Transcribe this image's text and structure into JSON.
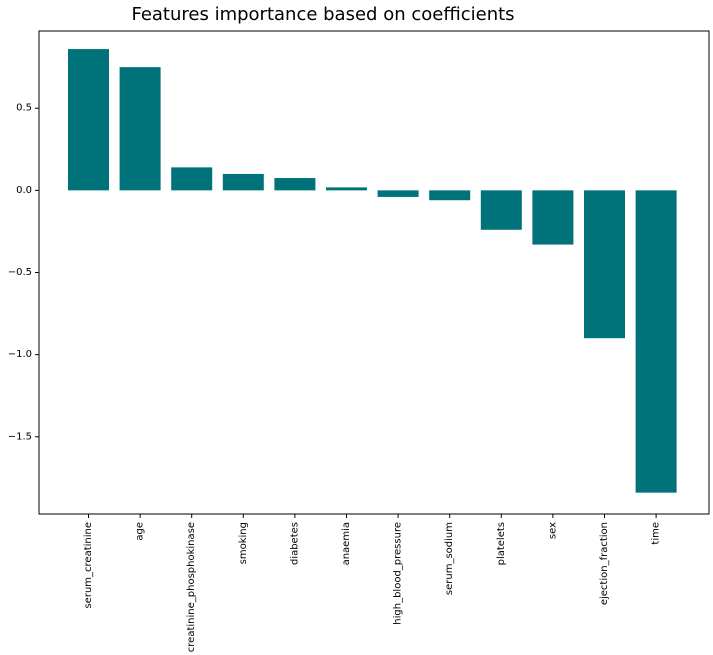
{
  "chart_data": {
    "type": "bar",
    "title": "Features importance based on coefficients",
    "xlabel": "",
    "ylabel": "",
    "categories": [
      "serum_creatinine",
      "age",
      "creatinine_phosphokinase",
      "smoking",
      "diabetes",
      "anaemia",
      "high_blood_pressure",
      "serum_sodium",
      "platelets",
      "sex",
      "ejection_fraction",
      "time"
    ],
    "values": [
      0.86,
      0.75,
      0.14,
      0.1,
      0.075,
      0.018,
      -0.04,
      -0.06,
      -0.24,
      -0.33,
      -0.9,
      -1.84
    ],
    "ylim": [
      -1.97,
      0.97
    ],
    "yticks": [
      -1.5,
      -1.0,
      -0.5,
      0.0,
      0.5
    ],
    "ytick_labels": [
      "−1.5",
      "−1.0",
      "−0.5",
      "0.0",
      "0.5"
    ],
    "bar_color": "#00727a",
    "grid": false,
    "legend": "none"
  }
}
